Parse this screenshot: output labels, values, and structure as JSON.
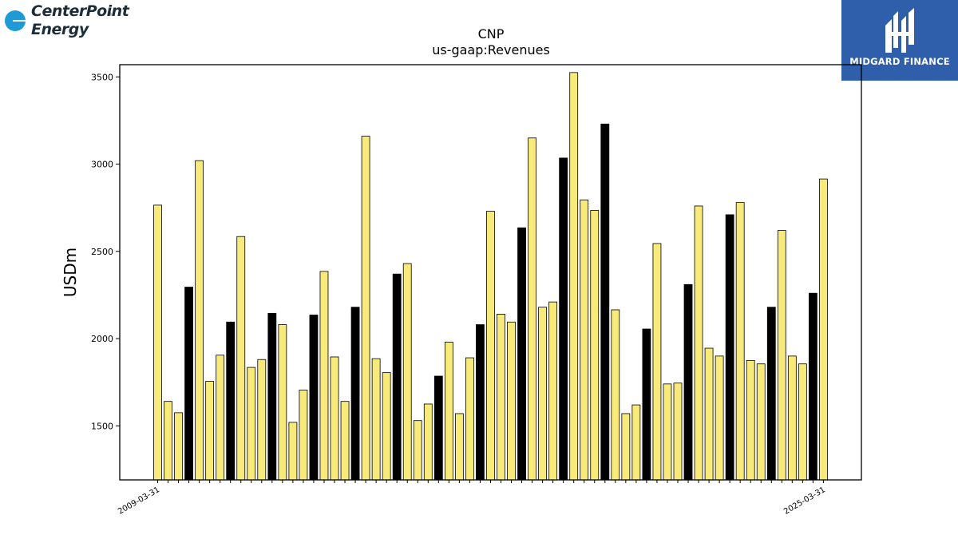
{
  "branding": {
    "company_name": "CenterPoint",
    "company_sub": "Energy",
    "registered_mark": "®",
    "publisher": "MIDGARD FINANCE",
    "publisher_icon": "midgard-mh-monogram-icon",
    "company_icon": "centerpoint-circle-icon"
  },
  "colors": {
    "quarter_bar": "#f7e97a",
    "annual_bar": "#000000",
    "bar_edge": "#000000",
    "badge_bg": "#2f5faa",
    "logo_circle": "#1e9bd7"
  },
  "chart_data": {
    "type": "bar",
    "title": "CNP",
    "subtitle": "us-gaap:Revenues",
    "xlabel": "",
    "ylabel": "USDm",
    "ylim": [
      1190,
      3570
    ],
    "yticks": [
      1500,
      2000,
      2500,
      3000,
      3500
    ],
    "grid": false,
    "legend": "none",
    "visible_x_labels": [
      "2009-03-31",
      "2025-03-31"
    ],
    "series": [
      {
        "values": [
          2765,
          1640,
          1575,
          2295,
          3020,
          1755,
          1905,
          2095,
          2585,
          1835,
          1880,
          2145,
          2080,
          1520,
          1705,
          2135,
          2385,
          1895,
          1640,
          2180,
          3160,
          1885,
          1805,
          2370,
          2430,
          1530,
          1625,
          1785,
          1980,
          1570,
          1890,
          2080,
          2730,
          2140,
          2095,
          2635,
          3150,
          2180,
          2210,
          3035,
          3525,
          2795,
          2735,
          3230,
          2165,
          1570,
          1620,
          2055,
          2545,
          1740,
          1745,
          2310,
          2760,
          1945,
          1900,
          2710,
          2780,
          1875,
          1855,
          2180,
          2620,
          1900,
          1855,
          2260,
          2915
        ],
        "is_annual": [
          false,
          false,
          false,
          true,
          false,
          false,
          false,
          true,
          false,
          false,
          false,
          true,
          false,
          false,
          false,
          true,
          false,
          false,
          false,
          true,
          false,
          false,
          false,
          true,
          false,
          false,
          false,
          true,
          false,
          false,
          false,
          true,
          false,
          false,
          false,
          true,
          false,
          false,
          false,
          true,
          false,
          false,
          false,
          true,
          false,
          false,
          false,
          true,
          false,
          false,
          false,
          true,
          false,
          false,
          false,
          true,
          false,
          false,
          false,
          true,
          false,
          false,
          false,
          true,
          false
        ]
      }
    ]
  }
}
